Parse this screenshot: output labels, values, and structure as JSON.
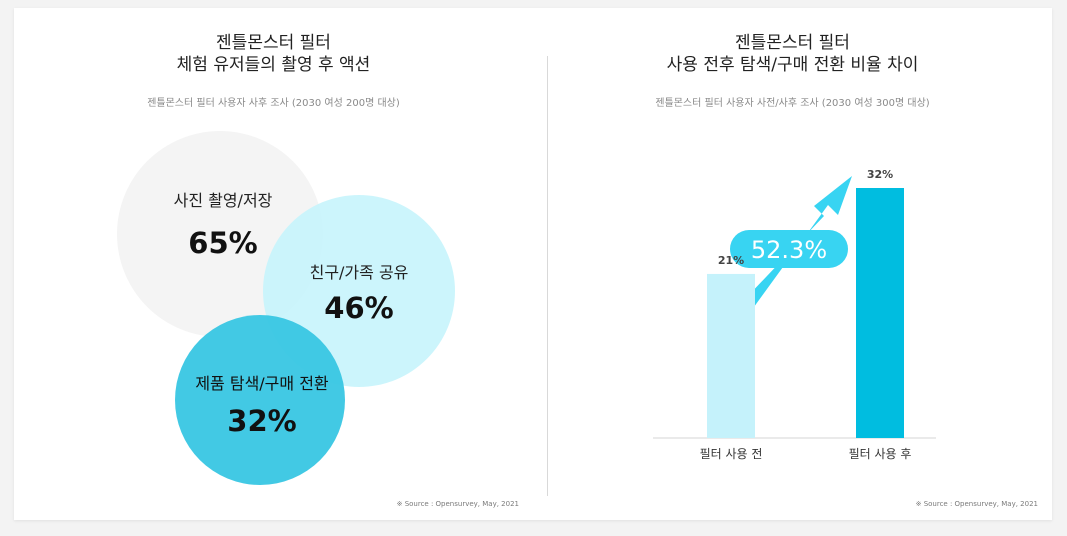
{
  "colors": {
    "circle_gray": "#f4f4f4",
    "circle_light": "#c7f4fc",
    "circle_teal": "#38c6e3",
    "bar_before": "#c5f2fb",
    "bar_after": "#00bde0",
    "arrow": "#38d4f2"
  },
  "chart_data": [
    {
      "type": "venn",
      "title": [
        "젠틀몬스터 필터",
        "체험 유저들의 촬영 후 액션"
      ],
      "subtitle": "젠틀몬스터 필터 사용자 사후 조사 (2030 여성 200명 대상)",
      "sets": [
        {
          "label": "사진 촬영/저장",
          "value": "65%",
          "percent": 65
        },
        {
          "label": "친구/가족 공유",
          "value": "46%",
          "percent": 46
        },
        {
          "label": "제품 탐색/구매 전환",
          "value": "32%",
          "percent": 32
        }
      ],
      "source": "※ Source : Opensurvey, May, 2021"
    },
    {
      "type": "bar",
      "title": [
        "젠틀몬스터 필터",
        "사용 전후 탐색/구매 전환 비율 차이"
      ],
      "subtitle": "젠틀몬스터 필터 사용자 사전/사후 조사 (2030 여성 300명 대상)",
      "categories": [
        "필터 사용 전",
        "필터 사용 후"
      ],
      "values": [
        21,
        32
      ],
      "value_labels": [
        "21%",
        "32%"
      ],
      "ylim": [
        0,
        32
      ],
      "annotation": "52.3%",
      "source": "※ Source : Opensurvey, May, 2021"
    }
  ]
}
